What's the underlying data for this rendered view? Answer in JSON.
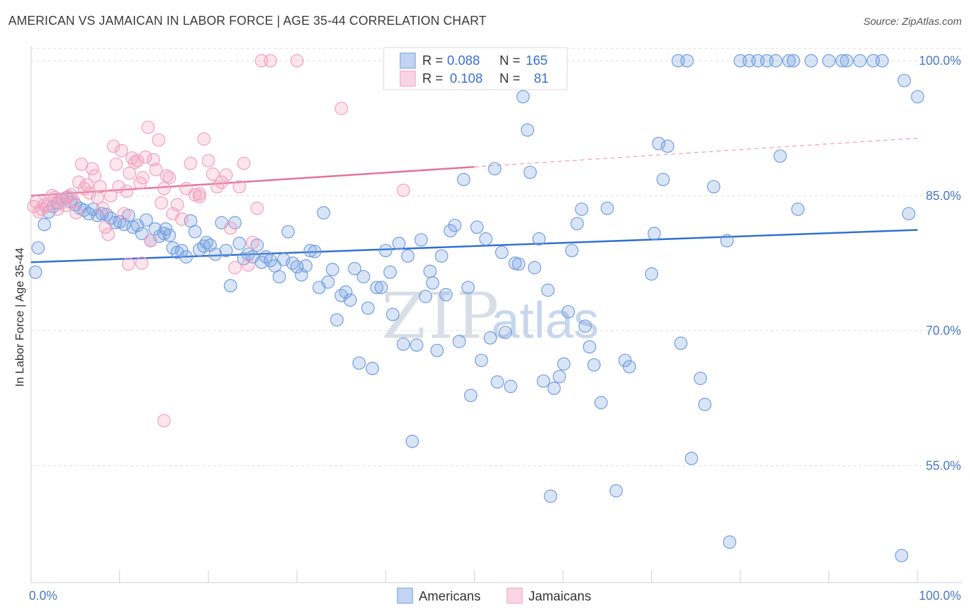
{
  "title": "AMERICAN VS JAMAICAN IN LABOR FORCE | AGE 35-44 CORRELATION CHART",
  "source": "Source: ZipAtlas.com",
  "watermark": {
    "part1": "ZIP",
    "part2": "atlas"
  },
  "colors": {
    "americans_fill": "rgba(120,160,225,0.28)",
    "americans_stroke": "#6f9be0",
    "americans_line": "#2f6fd0",
    "jamaicans_fill": "rgba(245,160,190,0.28)",
    "jamaicans_stroke": "#f0a0bc",
    "jamaicans_line": "#e87098"
  },
  "legend": {
    "row1": {
      "r_label": "R =",
      "r_value": "0.088",
      "n_label": "N =",
      "n_value": "165"
    },
    "row2": {
      "r_label": "R =",
      "r_value": "0.108",
      "n_label": "N =",
      "n_value": "81"
    }
  },
  "chart_data": {
    "type": "scatter",
    "title": "AMERICAN VS JAMAICAN IN LABOR FORCE | AGE 35-44 CORRELATION CHART",
    "xlabel": "",
    "ylabel": "In Labor Force | Age 35-44",
    "x_tick_labels": [
      "0.0%",
      "100.0%"
    ],
    "y_tick_labels": [
      "100.0%",
      "85.0%",
      "70.0%",
      "55.0%"
    ],
    "y_ticks": [
      100,
      85,
      70,
      55
    ],
    "xlim": [
      0,
      100
    ],
    "ylim": [
      42,
      102
    ],
    "grid": true,
    "legend_position": "top-center",
    "series": [
      {
        "name": "Americans",
        "r": 0.088,
        "n": 165,
        "trend": {
          "x": [
            0,
            100
          ],
          "y": [
            77.6,
            81.2
          ]
        },
        "points": [
          [
            0.5,
            76.5
          ],
          [
            0.8,
            79.2
          ],
          [
            1.5,
            81.8
          ],
          [
            2.0,
            83.2
          ],
          [
            2.5,
            83.8
          ],
          [
            3.0,
            84.2
          ],
          [
            3.5,
            84.6
          ],
          [
            4.0,
            84.8
          ],
          [
            4.5,
            84.3
          ],
          [
            5.0,
            84.0
          ],
          [
            5.5,
            83.6
          ],
          [
            6.0,
            83.4
          ],
          [
            7.0,
            83.5
          ],
          [
            6.5,
            83.0
          ],
          [
            7.5,
            82.8
          ],
          [
            8.0,
            83.0
          ],
          [
            8.5,
            82.9
          ],
          [
            9.0,
            82.5
          ],
          [
            9.5,
            82.0
          ],
          [
            10.0,
            82.1
          ],
          [
            10.5,
            81.8
          ],
          [
            11.0,
            82.8
          ],
          [
            11.5,
            81.5
          ],
          [
            12.0,
            81.7
          ],
          [
            12.5,
            80.8
          ],
          [
            13.0,
            82.3
          ],
          [
            13.5,
            80.0
          ],
          [
            14.0,
            81.3
          ],
          [
            14.5,
            80.5
          ],
          [
            15.0,
            80.8
          ],
          [
            15.2,
            81.3
          ],
          [
            15.6,
            80.6
          ],
          [
            16.0,
            79.2
          ],
          [
            16.5,
            78.7
          ],
          [
            17.0,
            78.9
          ],
          [
            17.5,
            78.2
          ],
          [
            18.0,
            82.2
          ],
          [
            18.5,
            81.0
          ],
          [
            19.0,
            79.0
          ],
          [
            19.5,
            79.4
          ],
          [
            19.8,
            79.8
          ],
          [
            20.2,
            79.5
          ],
          [
            20.8,
            78.5
          ],
          [
            21.5,
            82.0
          ],
          [
            22.0,
            78.9
          ],
          [
            22.5,
            75.0
          ],
          [
            23.0,
            82.0
          ],
          [
            23.5,
            79.7
          ],
          [
            24.0,
            78.0
          ],
          [
            24.5,
            78.5
          ],
          [
            25.0,
            78.2
          ],
          [
            25.5,
            79.5
          ],
          [
            26.0,
            77.6
          ],
          [
            26.5,
            78.2
          ],
          [
            27.0,
            77.8
          ],
          [
            27.5,
            77.2
          ],
          [
            28.0,
            76.0
          ],
          [
            28.5,
            77.9
          ],
          [
            29.0,
            81.0
          ],
          [
            29.5,
            77.5
          ],
          [
            30.0,
            77.1
          ],
          [
            30.5,
            76.2
          ],
          [
            31.0,
            77.2
          ],
          [
            31.5,
            78.9
          ],
          [
            32.0,
            78.8
          ],
          [
            32.5,
            74.8
          ],
          [
            33.0,
            83.1
          ],
          [
            33.5,
            75.4
          ],
          [
            34.0,
            76.8
          ],
          [
            34.5,
            71.2
          ],
          [
            35.0,
            73.9
          ],
          [
            35.5,
            74.3
          ],
          [
            36.0,
            73.4
          ],
          [
            36.5,
            76.9
          ],
          [
            37.0,
            66.4
          ],
          [
            37.5,
            76.0
          ],
          [
            38.0,
            72.5
          ],
          [
            38.5,
            65.8
          ],
          [
            39.0,
            74.8
          ],
          [
            39.5,
            74.8
          ],
          [
            40.0,
            78.9
          ],
          [
            40.5,
            76.5
          ],
          [
            40.8,
            71.8
          ],
          [
            41.5,
            79.7
          ],
          [
            42.0,
            68.5
          ],
          [
            42.5,
            78.3
          ],
          [
            43.0,
            57.7
          ],
          [
            43.5,
            68.4
          ],
          [
            44.0,
            80.1
          ],
          [
            44.5,
            73.8
          ],
          [
            45.0,
            76.6
          ],
          [
            45.3,
            75.3
          ],
          [
            45.8,
            67.8
          ],
          [
            46.3,
            78.3
          ],
          [
            46.8,
            74.0
          ],
          [
            47.3,
            81.1
          ],
          [
            47.8,
            81.7
          ],
          [
            48.3,
            68.8
          ],
          [
            48.8,
            86.8
          ],
          [
            49.3,
            74.8
          ],
          [
            49.6,
            62.8
          ],
          [
            50.3,
            81.5
          ],
          [
            50.8,
            66.7
          ],
          [
            51.3,
            80.2
          ],
          [
            51.8,
            69.2
          ],
          [
            52.3,
            88.0
          ],
          [
            52.6,
            64.3
          ],
          [
            53.1,
            78.7
          ],
          [
            53.5,
            69.8
          ],
          [
            54.1,
            63.8
          ],
          [
            54.6,
            77.5
          ],
          [
            55.0,
            77.4
          ],
          [
            55.5,
            96.0
          ],
          [
            56.0,
            92.3
          ],
          [
            56.3,
            87.6
          ],
          [
            56.8,
            77.0
          ],
          [
            57.3,
            80.2
          ],
          [
            57.8,
            64.4
          ],
          [
            58.3,
            74.5
          ],
          [
            58.6,
            51.6
          ],
          [
            59.0,
            63.6
          ],
          [
            59.6,
            64.9
          ],
          [
            60.1,
            66.3
          ],
          [
            60.6,
            72.1
          ],
          [
            61.0,
            78.9
          ],
          [
            61.6,
            81.9
          ],
          [
            62.1,
            83.5
          ],
          [
            62.5,
            70.5
          ],
          [
            63.0,
            68.2
          ],
          [
            63.5,
            66.2
          ],
          [
            64.3,
            62.0
          ],
          [
            65.0,
            83.6
          ],
          [
            66.0,
            52.2
          ],
          [
            67.0,
            66.7
          ],
          [
            67.5,
            66.0
          ],
          [
            70.0,
            76.3
          ],
          [
            70.3,
            80.8
          ],
          [
            70.8,
            90.8
          ],
          [
            71.3,
            86.8
          ],
          [
            71.8,
            90.5
          ],
          [
            73.0,
            100.0
          ],
          [
            73.3,
            68.6
          ],
          [
            74.0,
            100.0
          ],
          [
            74.5,
            55.8
          ],
          [
            75.5,
            64.7
          ],
          [
            76.0,
            61.8
          ],
          [
            77.0,
            86.0
          ],
          [
            78.5,
            80.0
          ],
          [
            78.8,
            46.5
          ],
          [
            80.0,
            100.0
          ],
          [
            81.0,
            100.0
          ],
          [
            82.0,
            100.0
          ],
          [
            83.0,
            100.0
          ],
          [
            84.0,
            100.0
          ],
          [
            85.5,
            100.0
          ],
          [
            86.0,
            100.0
          ],
          [
            88.0,
            100.0
          ],
          [
            90.0,
            100.0
          ],
          [
            91.5,
            100.0
          ],
          [
            92.0,
            100.0
          ],
          [
            93.5,
            100.0
          ],
          [
            95.0,
            100.0
          ],
          [
            96.0,
            100.0
          ],
          [
            98.5,
            97.8
          ],
          [
            99.0,
            83.0
          ],
          [
            98.2,
            45.0
          ],
          [
            84.5,
            89.4
          ],
          [
            86.5,
            83.5
          ],
          [
            100.0,
            96.0
          ]
        ]
      },
      {
        "name": "Jamaicans",
        "r": 0.108,
        "n": 81,
        "trend": {
          "x": [
            0,
            50
          ],
          "y": [
            85.0,
            88.2
          ]
        },
        "trend_dashed": {
          "x": [
            50,
            100
          ],
          "y": [
            88.2,
            91.4
          ]
        },
        "points": [
          [
            0.3,
            83.8
          ],
          [
            0.6,
            84.3
          ],
          [
            0.9,
            83.2
          ],
          [
            1.2,
            83.5
          ],
          [
            1.5,
            84.0
          ],
          [
            1.8,
            83.8
          ],
          [
            2.1,
            84.5
          ],
          [
            2.4,
            85.0
          ],
          [
            2.7,
            84.8
          ],
          [
            3.0,
            83.5
          ],
          [
            3.3,
            84.2
          ],
          [
            3.6,
            84.6
          ],
          [
            3.9,
            83.9
          ],
          [
            4.2,
            84.9
          ],
          [
            4.5,
            85.1
          ],
          [
            4.8,
            84.4
          ],
          [
            5.1,
            83.1
          ],
          [
            5.4,
            86.5
          ],
          [
            5.7,
            88.5
          ],
          [
            6.0,
            85.8
          ],
          [
            6.3,
            86.2
          ],
          [
            6.6,
            85.3
          ],
          [
            6.9,
            88.0
          ],
          [
            7.2,
            87.2
          ],
          [
            7.5,
            84.8
          ],
          [
            7.8,
            86.0
          ],
          [
            8.1,
            83.6
          ],
          [
            8.4,
            81.5
          ],
          [
            8.7,
            80.7
          ],
          [
            9.0,
            85.0
          ],
          [
            9.3,
            90.5
          ],
          [
            9.6,
            88.5
          ],
          [
            9.9,
            86.0
          ],
          [
            10.2,
            90.0
          ],
          [
            10.5,
            83.0
          ],
          [
            10.8,
            85.5
          ],
          [
            11.1,
            87.5
          ],
          [
            11.4,
            89.2
          ],
          [
            11.7,
            88.7
          ],
          [
            12.0,
            88.9
          ],
          [
            12.3,
            86.4
          ],
          [
            12.6,
            87.0
          ],
          [
            12.9,
            89.3
          ],
          [
            13.2,
            92.6
          ],
          [
            13.5,
            80.0
          ],
          [
            13.8,
            89.0
          ],
          [
            14.1,
            87.9
          ],
          [
            14.4,
            91.2
          ],
          [
            14.7,
            84.2
          ],
          [
            15.0,
            85.8
          ],
          [
            15.3,
            87.2
          ],
          [
            15.6,
            87.0
          ],
          [
            16.0,
            83.0
          ],
          [
            16.5,
            84.0
          ],
          [
            17.0,
            82.4
          ],
          [
            17.5,
            85.8
          ],
          [
            18.0,
            88.6
          ],
          [
            18.5,
            85.1
          ],
          [
            19.0,
            84.9
          ],
          [
            19.5,
            91.3
          ],
          [
            20.0,
            88.9
          ],
          [
            20.5,
            87.4
          ],
          [
            21.0,
            86.0
          ],
          [
            21.5,
            86.5
          ],
          [
            22.0,
            87.3
          ],
          [
            22.5,
            81.4
          ],
          [
            23.0,
            77.0
          ],
          [
            23.5,
            86.0
          ],
          [
            24.0,
            88.6
          ],
          [
            24.5,
            77.3
          ],
          [
            25.0,
            79.8
          ],
          [
            25.5,
            83.6
          ],
          [
            26.0,
            100.0
          ],
          [
            27.0,
            100.0
          ],
          [
            11.0,
            77.4
          ],
          [
            15.0,
            60.0
          ],
          [
            35.0,
            94.7
          ],
          [
            42.0,
            85.6
          ],
          [
            30.0,
            100.0
          ],
          [
            19.0,
            85.2
          ],
          [
            12.5,
            77.5
          ]
        ]
      }
    ]
  },
  "bottom_legend": {
    "americans": "Americans",
    "jamaicans": "Jamaicans"
  }
}
